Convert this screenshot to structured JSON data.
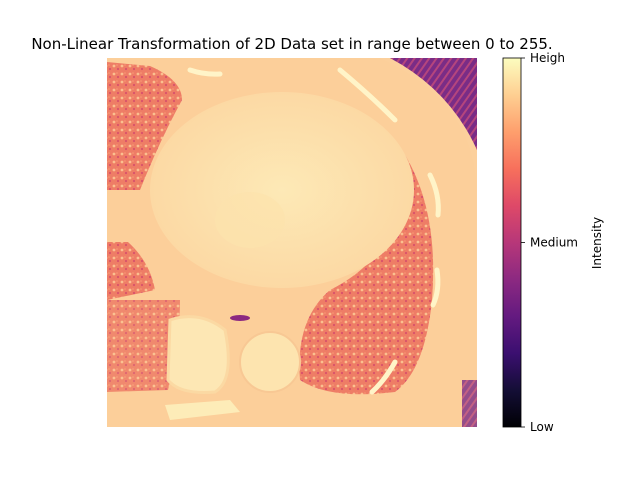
{
  "chart_data": {
    "type": "heatmap",
    "title": "Non-Linear Transformation of 2D Data set in range between 0 to 255.",
    "colormap": "magma",
    "axes_visible": false,
    "value_range": [
      0,
      255
    ],
    "colorbar": {
      "label": "Intensity",
      "ticks": [
        {
          "value": 0,
          "label": "Low"
        },
        {
          "value": 127.5,
          "label": "Medium"
        },
        {
          "value": 255,
          "label": "Heigh"
        }
      ]
    },
    "image_description_values": {
      "body_soft_tissue": 235,
      "heart_center": 245,
      "lung_regions": 150,
      "background_corner": 70,
      "air_pockets": 110
    }
  }
}
